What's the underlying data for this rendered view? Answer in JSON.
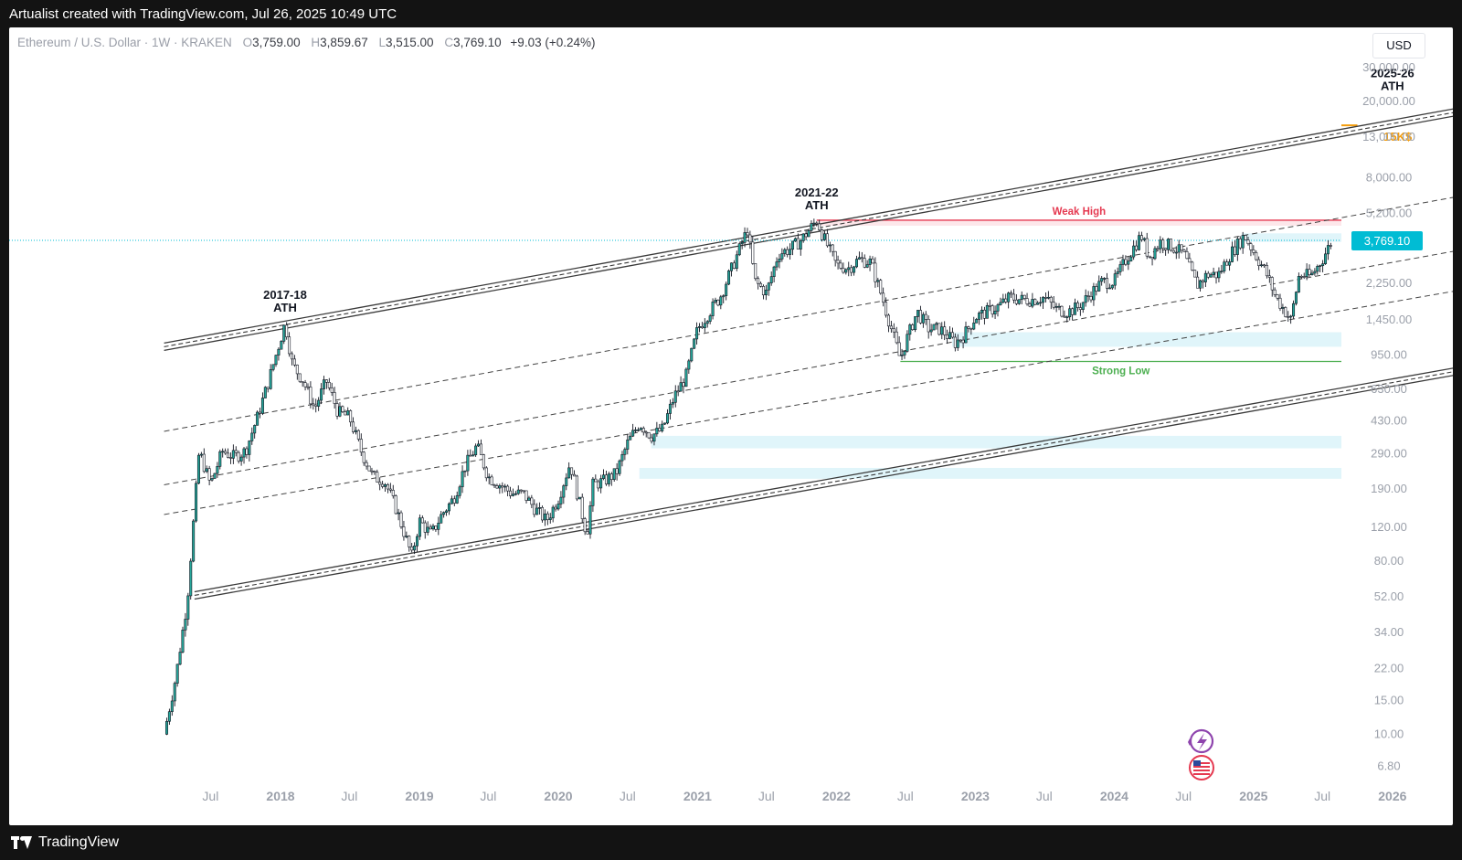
{
  "header": {
    "caption": "Artualist created with TradingView.com, Jul 26, 2025 10:49 UTC"
  },
  "legend": {
    "symbol": "Ethereum / U.S. Dollar · 1W · KRAKEN",
    "open_label": "O",
    "open": "3,759.00",
    "high_label": "H",
    "high": "3,859.67",
    "low_label": "L",
    "low": "3,515.00",
    "close_label": "C",
    "close": "3,769.10",
    "change": "+9.03 (+0.24%)"
  },
  "currency_button": "USD",
  "footer": {
    "brand": "TradingView"
  },
  "colors": {
    "up": "#26a69a",
    "down": "#ffffff",
    "wick": "#131722",
    "resistance": "#e53950",
    "support": "#4caf50",
    "target": "#f59d0b",
    "demand_zone": "#e0f5fa",
    "price_line": "#00bcd4",
    "price_badge": "#00bcd4"
  },
  "icons": [
    "lightning-badge-icon",
    "us-flag-icon",
    "tradingview-logo-icon"
  ],
  "chart_data": {
    "type": "candlestick",
    "scale": "log",
    "x_axis": {
      "ticks": [
        "Jul",
        "2018",
        "Jul",
        "2019",
        "Jul",
        "2020",
        "Jul",
        "2021",
        "Jul",
        "2022",
        "Jul",
        "2023",
        "Jul",
        "2024",
        "Jul",
        "2025",
        "Jul",
        "2026",
        "Ju"
      ],
      "tick_dates": [
        "2017-07-01",
        "2018-01-01",
        "2018-07-01",
        "2019-01-01",
        "2019-07-01",
        "2020-01-01",
        "2020-07-01",
        "2021-01-01",
        "2021-07-01",
        "2022-01-01",
        "2022-07-01",
        "2023-01-01",
        "2023-07-01",
        "2024-01-01",
        "2024-07-01",
        "2025-01-01",
        "2025-07-01",
        "2026-01-01",
        "2026-07-01"
      ]
    },
    "y_axis": {
      "ticks": [
        6.8,
        10,
        15,
        22,
        34,
        52,
        80,
        120,
        190,
        290,
        430,
        630,
        950,
        1450,
        2250,
        5200,
        8000,
        13000,
        20000,
        30000
      ],
      "tick_labels": [
        "6.80",
        "10.00",
        "15.00",
        "22.00",
        "34.00",
        "52.00",
        "80.00",
        "120.00",
        "190.00",
        "290.00",
        "430.00",
        "630.00",
        "950.00",
        "1,450.00",
        "2,250.00",
        "5,200.00",
        "8,000.00",
        "13,000.00",
        "20,000.00",
        "30,000.00"
      ]
    },
    "last_price": 3769.1,
    "last_price_label": "3,769.10",
    "price_path": [
      [
        "2017-03-01",
        10
      ],
      [
        "2017-04-01",
        20
      ],
      [
        "2017-05-01",
        50
      ],
      [
        "2017-06-01",
        300
      ],
      [
        "2017-07-01",
        200
      ],
      [
        "2017-08-01",
        300
      ],
      [
        "2017-09-01",
        280
      ],
      [
        "2017-10-01",
        300
      ],
      [
        "2017-11-01",
        450
      ],
      [
        "2017-12-01",
        700
      ],
      [
        "2018-01-13",
        1400
      ],
      [
        "2018-02-01",
        850
      ],
      [
        "2018-03-01",
        700
      ],
      [
        "2018-04-01",
        500
      ],
      [
        "2018-05-01",
        700
      ],
      [
        "2018-06-01",
        480
      ],
      [
        "2018-07-01",
        450
      ],
      [
        "2018-08-01",
        300
      ],
      [
        "2018-09-01",
        220
      ],
      [
        "2018-10-01",
        210
      ],
      [
        "2018-11-01",
        150
      ],
      [
        "2018-12-12",
        85
      ],
      [
        "2019-01-01",
        130
      ],
      [
        "2019-02-01",
        110
      ],
      [
        "2019-03-01",
        140
      ],
      [
        "2019-04-01",
        170
      ],
      [
        "2019-05-01",
        250
      ],
      [
        "2019-06-01",
        320
      ],
      [
        "2019-07-01",
        220
      ],
      [
        "2019-08-01",
        200
      ],
      [
        "2019-09-01",
        180
      ],
      [
        "2019-10-01",
        180
      ],
      [
        "2019-11-01",
        150
      ],
      [
        "2019-12-01",
        130
      ],
      [
        "2020-01-01",
        170
      ],
      [
        "2020-02-01",
        260
      ],
      [
        "2020-03-16",
        110
      ],
      [
        "2020-04-01",
        200
      ],
      [
        "2020-05-01",
        210
      ],
      [
        "2020-06-01",
        230
      ],
      [
        "2020-07-01",
        330
      ],
      [
        "2020-08-01",
        420
      ],
      [
        "2020-09-01",
        360
      ],
      [
        "2020-10-01",
        390
      ],
      [
        "2020-11-01",
        580
      ],
      [
        "2020-12-01",
        730
      ],
      [
        "2021-01-01",
        1300
      ],
      [
        "2021-02-01",
        1600
      ],
      [
        "2021-03-01",
        1900
      ],
      [
        "2021-04-01",
        2700
      ],
      [
        "2021-05-12",
        4300
      ],
      [
        "2021-06-01",
        2300
      ],
      [
        "2021-07-01",
        2000
      ],
      [
        "2021-08-01",
        3200
      ],
      [
        "2021-09-01",
        3400
      ],
      [
        "2021-10-01",
        3800
      ],
      [
        "2021-11-10",
        4800
      ],
      [
        "2021-12-01",
        3800
      ],
      [
        "2022-01-01",
        2800
      ],
      [
        "2022-02-01",
        2700
      ],
      [
        "2022-03-01",
        3000
      ],
      [
        "2022-04-01",
        2900
      ],
      [
        "2022-05-01",
        1900
      ],
      [
        "2022-06-18",
        900
      ],
      [
        "2022-07-01",
        1100
      ],
      [
        "2022-08-01",
        1600
      ],
      [
        "2022-09-01",
        1300
      ],
      [
        "2022-10-01",
        1300
      ],
      [
        "2022-11-09",
        1100
      ],
      [
        "2022-12-01",
        1200
      ],
      [
        "2023-01-01",
        1500
      ],
      [
        "2023-02-01",
        1600
      ],
      [
        "2023-03-01",
        1700
      ],
      [
        "2023-04-01",
        1900
      ],
      [
        "2023-05-01",
        1850
      ],
      [
        "2023-06-01",
        1850
      ],
      [
        "2023-07-01",
        1900
      ],
      [
        "2023-08-01",
        1650
      ],
      [
        "2023-09-01",
        1600
      ],
      [
        "2023-10-01",
        1700
      ],
      [
        "2023-11-01",
        2000
      ],
      [
        "2023-12-01",
        2300
      ],
      [
        "2024-01-01",
        2300
      ],
      [
        "2024-02-01",
        3000
      ],
      [
        "2024-03-12",
        4000
      ],
      [
        "2024-04-01",
        3100
      ],
      [
        "2024-05-01",
        3700
      ],
      [
        "2024-06-01",
        3500
      ],
      [
        "2024-07-01",
        3200
      ],
      [
        "2024-08-05",
        2200
      ],
      [
        "2024-09-01",
        2500
      ],
      [
        "2024-10-01",
        2500
      ],
      [
        "2024-11-01",
        3200
      ],
      [
        "2024-12-08",
        4000
      ],
      [
        "2025-01-01",
        3300
      ],
      [
        "2025-02-01",
        2600
      ],
      [
        "2025-03-01",
        1900
      ],
      [
        "2025-04-09",
        1450
      ],
      [
        "2025-05-01",
        2500
      ],
      [
        "2025-06-01",
        2450
      ],
      [
        "2025-07-01",
        3000
      ],
      [
        "2025-07-26",
        3769
      ]
    ],
    "levels": [
      {
        "label": "Weak High",
        "value": 4800,
        "from": "2021-11-10",
        "to": "2026-09-01"
      },
      {
        "label": "Strong Low",
        "value": 880,
        "from": "2022-06-18",
        "to": "2026-09-01"
      },
      {
        "label": "15K$",
        "value": 15000,
        "from": "2025-10-01",
        "to": "2026-09-01"
      }
    ],
    "zones": [
      {
        "low": 3700,
        "high": 4100,
        "from": "2024-12-01",
        "to": "2026-09-01"
      },
      {
        "low": 1050,
        "high": 1250,
        "from": "2022-11-01",
        "to": "2026-09-01"
      },
      {
        "low": 310,
        "high": 360,
        "from": "2020-09-01",
        "to": "2026-09-01"
      },
      {
        "low": 215,
        "high": 245,
        "from": "2020-08-01",
        "to": "2026-09-01"
      }
    ],
    "channel": {
      "upper": [
        [
          "2017-03-01",
          1050
        ],
        [
          "2026-07-15",
          18000
        ]
      ],
      "lower": [
        [
          "2017-05-20",
          53
        ],
        [
          "2026-07-15",
          800
        ]
      ],
      "dashed": [
        [
          [
            "2017-03-01",
            380
          ],
          [
            "2026-07-15",
            6500
          ]
        ],
        [
          [
            "2017-03-01",
            200
          ],
          [
            "2026-07-15",
            3400
          ]
        ],
        [
          [
            "2017-03-01",
            140
          ],
          [
            "2026-07-15",
            2100
          ]
        ]
      ]
    },
    "annotations": [
      {
        "line1": "2017-18",
        "line2": "ATH",
        "date": "2018-01-13",
        "value": 1400
      },
      {
        "line1": "2021-22",
        "line2": "ATH",
        "date": "2021-11-10",
        "value": 4800
      },
      {
        "line1": "2025-26",
        "line2": "ATH",
        "date": "2026-01-01",
        "value": 18000
      }
    ]
  }
}
